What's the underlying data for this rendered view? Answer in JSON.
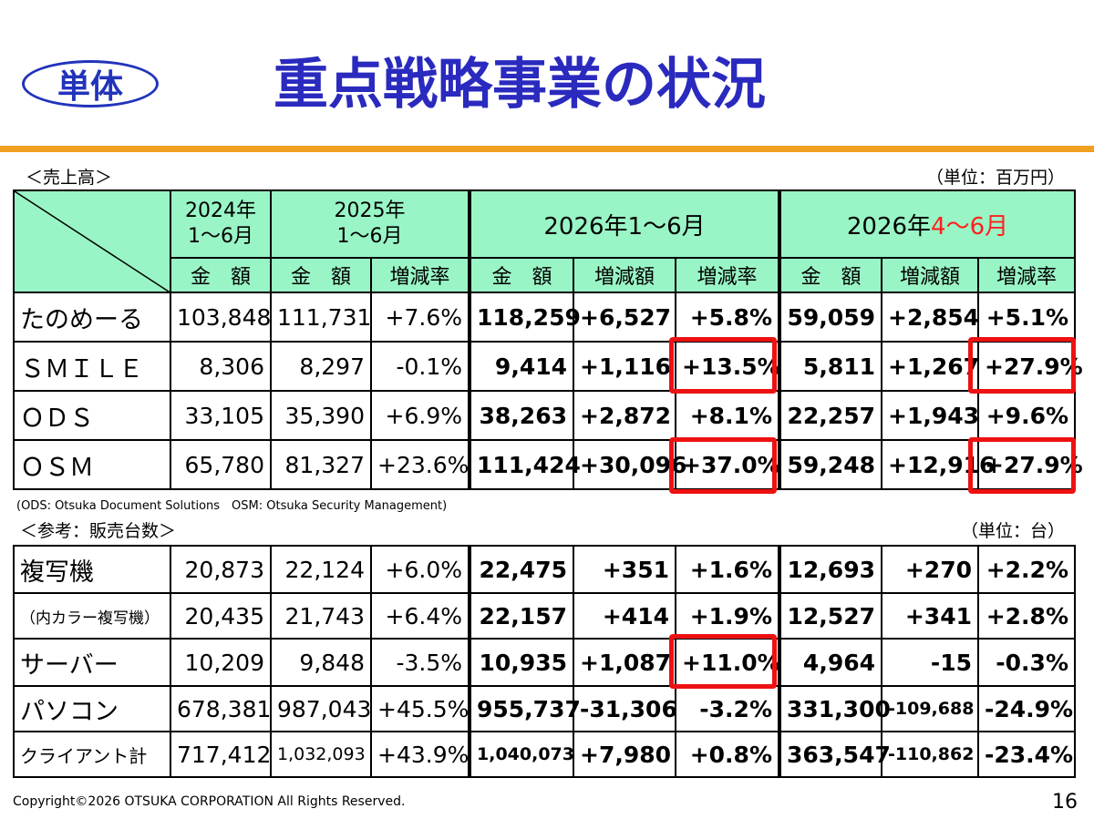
{
  "badge": "単体",
  "title": "重点戦略事業の状況",
  "sales": {
    "label": "＜売上高＞",
    "unit": "（単位：百万円）",
    "header": {
      "y2024": "2024年\n1〜6月",
      "y2025": "2025年\n1〜6月",
      "h1_2026": "2026年1〜6月",
      "q2_2026_prefix": "2026年",
      "q2_2026_suffix": "4〜6月",
      "amount": "金　額",
      "change_amount": "増減額",
      "change_rate": "増減率"
    },
    "rows": [
      {
        "name": "たのめーる",
        "a2024": "103,848",
        "a2025": "111,731",
        "r2025": "+7.6%",
        "a_h1": "118,259",
        "d_h1": "+6,527",
        "r_h1": "+5.8%",
        "a_q2": "59,059",
        "d_q2": "+2,854",
        "r_q2": "+5.1%"
      },
      {
        "name": "ＳＭＩＬＥ",
        "a2024": "8,306",
        "a2025": "8,297",
        "r2025": "-0.1%",
        "a_h1": "9,414",
        "d_h1": "+1,116",
        "r_h1": "+13.5%",
        "a_q2": "5,811",
        "d_q2": "+1,267",
        "r_q2": "+27.9%"
      },
      {
        "name": "ＯＤＳ",
        "a2024": "33,105",
        "a2025": "35,390",
        "r2025": "+6.9%",
        "a_h1": "38,263",
        "d_h1": "+2,872",
        "r_h1": "+8.1%",
        "a_q2": "22,257",
        "d_q2": "+1,943",
        "r_q2": "+9.6%"
      },
      {
        "name": "ＯＳＭ",
        "a2024": "65,780",
        "a2025": "81,327",
        "r2025": "+23.6%",
        "a_h1": "111,424",
        "d_h1": "+30,096",
        "r_h1": "+37.0%",
        "a_q2": "59,248",
        "d_q2": "+12,916",
        "r_q2": "+27.9%"
      }
    ],
    "note": "(ODS: Otsuka Document Solutions　OSM: Otsuka Security Management)"
  },
  "units": {
    "label": "＜参考：販売台数＞",
    "unit": "（単位：台）",
    "rows": [
      {
        "name": "複写機",
        "a2024": "20,873",
        "a2025": "22,124",
        "r2025": "+6.0%",
        "a_h1": "22,475",
        "d_h1": "+351",
        "r_h1": "+1.6%",
        "a_q2": "12,693",
        "d_q2": "+270",
        "r_q2": "+2.2%"
      },
      {
        "name": "（内カラー複写機）",
        "a2024": "20,435",
        "a2025": "21,743",
        "r2025": "+6.4%",
        "a_h1": "22,157",
        "d_h1": "+414",
        "r_h1": "+1.9%",
        "a_q2": "12,527",
        "d_q2": "+341",
        "r_q2": "+2.8%"
      },
      {
        "name": "サーバー",
        "a2024": "10,209",
        "a2025": "9,848",
        "r2025": "-3.5%",
        "a_h1": "10,935",
        "d_h1": "+1,087",
        "r_h1": "+11.0%",
        "a_q2": "4,964",
        "d_q2": "-15",
        "r_q2": "-0.3%"
      },
      {
        "name": "パソコン",
        "a2024": "678,381",
        "a2025": "987,043",
        "r2025": "+45.5%",
        "a_h1": "955,737",
        "d_h1": "-31,306",
        "r_h1": "-3.2%",
        "a_q2": "331,300",
        "d_q2": "-109,688",
        "r_q2": "-24.9%"
      },
      {
        "name": "クライアント計",
        "a2024": "717,412",
        "a2025": "1,032,093",
        "r2025": "+43.9%",
        "a_h1": "1,040,073",
        "d_h1": "+7,980",
        "r_h1": "+0.8%",
        "a_q2": "363,547",
        "d_q2": "-110,862",
        "r_q2": "-23.4%"
      }
    ]
  },
  "footer": {
    "copyright": "Copyright©2026 OTSUKA CORPORATION All Rights Reserved.",
    "page": "16"
  },
  "colors": {
    "header_bg": "#99f5c5",
    "title": "#2a2abf",
    "rule": "#f0a020",
    "highlight": "#ee1111"
  }
}
